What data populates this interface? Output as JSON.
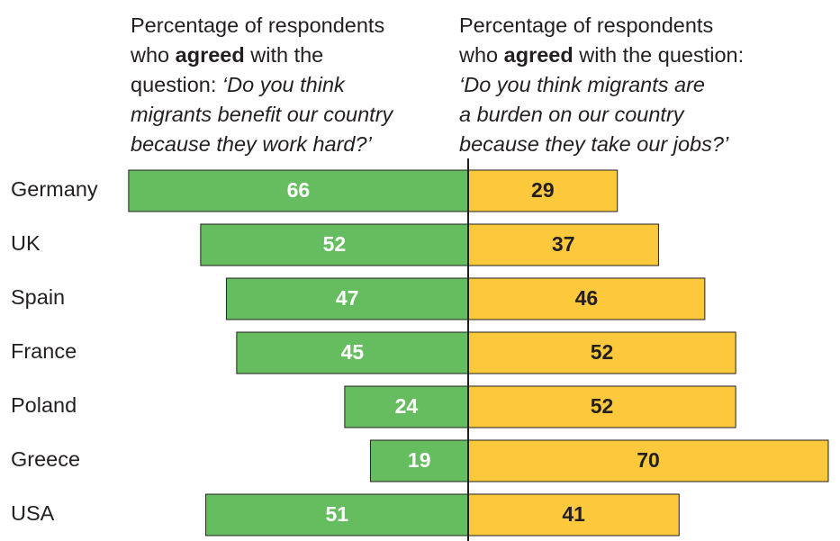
{
  "chart_data": {
    "type": "diverging-bar",
    "categories": [
      "Germany",
      "UK",
      "Spain",
      "France",
      "Poland",
      "Greece",
      "USA"
    ],
    "series": [
      {
        "header": [
          "Percentage of respondents",
          "who",
          "agreed",
          "with the",
          "question:",
          "‘Do you think",
          "migrants benefit our country",
          "because they work hard?’"
        ],
        "color": "#66bd5f",
        "label_color": "#ffffff",
        "side": "left",
        "values": [
          66,
          52,
          47,
          45,
          24,
          19,
          51
        ]
      },
      {
        "header": [
          "Percentage of respondents",
          "who",
          "agreed",
          "with the question:",
          "‘Do you think migrants are",
          "a burden on our country",
          "because they take our jobs?’"
        ],
        "color": "#fdc93c",
        "label_color": "#231f20",
        "side": "right",
        "values": [
          29,
          37,
          46,
          52,
          52,
          70,
          41
        ]
      }
    ]
  }
}
